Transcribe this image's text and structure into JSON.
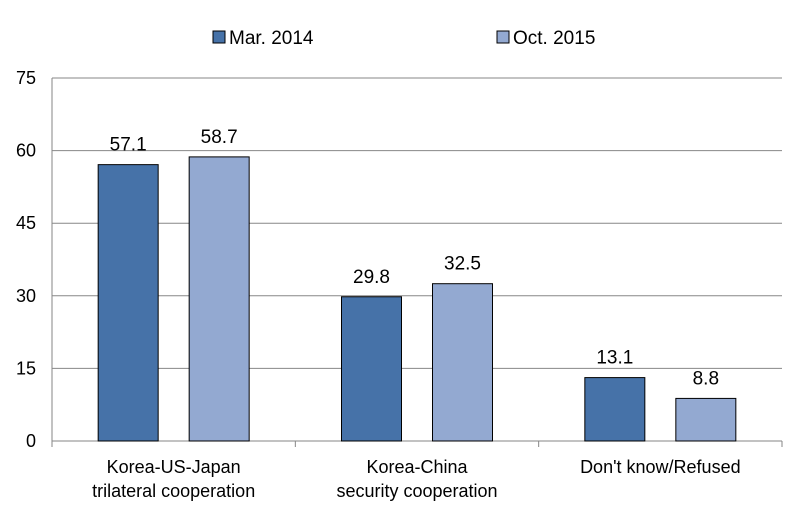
{
  "chart_data": {
    "type": "bar",
    "categories": [
      [
        "Korea-US-Japan",
        "trilateral cooperation"
      ],
      [
        "Korea-China",
        "security cooperation"
      ],
      [
        "Don't know/Refused"
      ]
    ],
    "series": [
      {
        "name": "Mar. 2014",
        "color": "#4672A8",
        "values": [
          57.1,
          29.8,
          13.1
        ]
      },
      {
        "name": "Oct. 2015",
        "color": "#93A9D1",
        "values": [
          58.7,
          32.5,
          8.8
        ]
      }
    ],
    "value_labels": [
      [
        "57.1",
        "29.8",
        "13.1"
      ],
      [
        "58.7",
        "32.5",
        "8.8"
      ]
    ],
    "yticks": [
      "0",
      "15",
      "30",
      "45",
      "60",
      "75"
    ],
    "ylim": [
      0,
      75
    ],
    "grid": true,
    "legend_position": "top"
  }
}
